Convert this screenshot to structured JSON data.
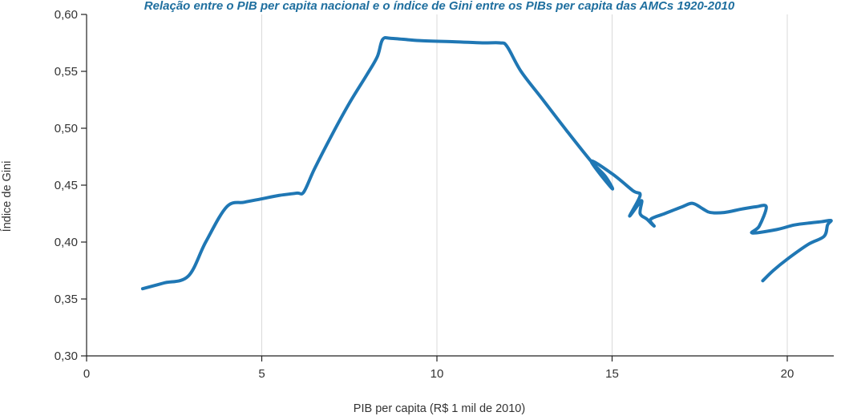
{
  "chart_data": {
    "type": "line",
    "title": "Relação entre o PIB per capita nacional e o índice de Gini entre os PIBs per capita das AMCs 1920-2010",
    "xlabel": "PIB per capita (R$ 1 mil de 2010)",
    "ylabel": "Índice de Gini",
    "xlim": [
      0,
      21.5
    ],
    "ylim": [
      0.3,
      0.6
    ],
    "x_ticks": [
      0,
      5,
      10,
      15,
      20
    ],
    "x_tick_labels": [
      "0",
      "5",
      "10",
      "15",
      "20"
    ],
    "y_ticks": [
      0.3,
      0.35,
      0.4,
      0.45,
      0.5,
      0.55,
      0.6
    ],
    "y_tick_labels": [
      "0,30",
      "0,35",
      "0,40",
      "0,45",
      "0,50",
      "0,55",
      "0,60"
    ],
    "grid": "vertical",
    "series_color": "#1f77b4",
    "series": [
      {
        "values": [
          [
            1.6,
            0.359
          ],
          [
            2.2,
            0.364
          ],
          [
            2.9,
            0.37
          ],
          [
            3.4,
            0.4
          ],
          [
            4.0,
            0.431
          ],
          [
            4.5,
            0.435
          ],
          [
            5.0,
            0.438
          ],
          [
            5.5,
            0.441
          ],
          [
            6.0,
            0.443
          ],
          [
            6.2,
            0.444
          ],
          [
            6.5,
            0.464
          ],
          [
            7.0,
            0.494
          ],
          [
            7.5,
            0.522
          ],
          [
            8.0,
            0.547
          ],
          [
            8.3,
            0.563
          ],
          [
            8.45,
            0.578
          ],
          [
            8.7,
            0.579
          ],
          [
            9.5,
            0.577
          ],
          [
            10.5,
            0.576
          ],
          [
            11.3,
            0.575
          ],
          [
            11.8,
            0.575
          ],
          [
            12.0,
            0.572
          ],
          [
            12.4,
            0.55
          ],
          [
            13.0,
            0.526
          ],
          [
            13.7,
            0.498
          ],
          [
            14.4,
            0.471
          ],
          [
            14.8,
            0.458
          ],
          [
            15.0,
            0.447
          ],
          [
            14.4,
            0.471
          ],
          [
            15.0,
            0.46
          ],
          [
            15.6,
            0.445
          ],
          [
            15.8,
            0.441
          ],
          [
            15.5,
            0.423
          ],
          [
            15.75,
            0.433
          ],
          [
            15.85,
            0.436
          ],
          [
            15.8,
            0.425
          ],
          [
            16.0,
            0.42
          ],
          [
            16.2,
            0.414
          ],
          [
            16.1,
            0.42
          ],
          [
            16.5,
            0.425
          ],
          [
            17.0,
            0.431
          ],
          [
            17.3,
            0.434
          ],
          [
            17.6,
            0.429
          ],
          [
            17.8,
            0.426
          ],
          [
            18.2,
            0.426
          ],
          [
            18.7,
            0.429
          ],
          [
            19.1,
            0.431
          ],
          [
            19.4,
            0.431
          ],
          [
            19.2,
            0.414
          ],
          [
            19.0,
            0.408
          ],
          [
            19.7,
            0.411
          ],
          [
            20.2,
            0.415
          ],
          [
            20.7,
            0.417
          ],
          [
            21.0,
            0.418
          ],
          [
            21.25,
            0.419
          ],
          [
            21.15,
            0.415
          ],
          [
            21.05,
            0.405
          ],
          [
            20.6,
            0.398
          ],
          [
            20.0,
            0.385
          ],
          [
            19.6,
            0.375
          ],
          [
            19.3,
            0.366
          ]
        ]
      }
    ]
  }
}
